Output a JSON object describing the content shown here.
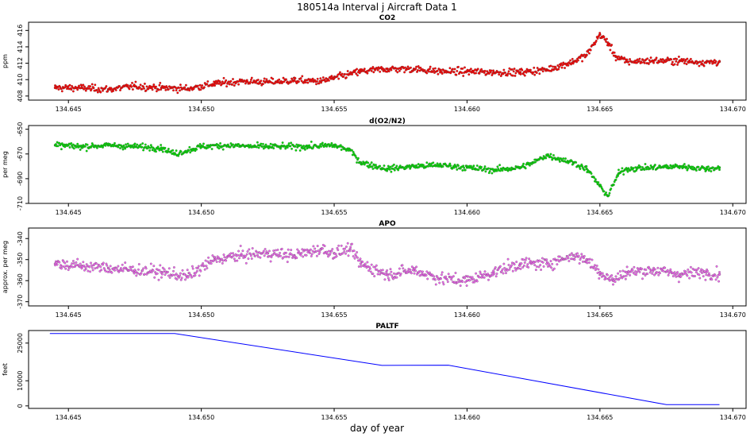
{
  "figure_title": "180514a   Interval j Aircraft Data 1",
  "xlabel": "day of year",
  "chart_data": [
    {
      "type": "scatter",
      "title": "CO2",
      "ylabel": "ppm",
      "xlim": [
        134.6435,
        134.6705
      ],
      "ylim": [
        407.5,
        417.0
      ],
      "xticks": [
        134.645,
        134.65,
        134.655,
        134.66,
        134.665,
        134.67
      ],
      "xtick_labels": [
        "134.645",
        "134.650",
        "134.655",
        "134.660",
        "134.665",
        "134.670"
      ],
      "yticks": [
        408,
        410,
        412,
        414,
        416
      ],
      "ytick_labels": [
        "408",
        "410",
        "412",
        "414",
        "416"
      ],
      "series": [
        {
          "color": "#ff0000",
          "x": [
            134.6445,
            134.6455,
            134.6465,
            134.6475,
            134.6485,
            134.6495,
            134.6505,
            134.6515,
            134.6525,
            134.6535,
            134.6545,
            134.655,
            134.656,
            134.657,
            134.658,
            134.659,
            134.66,
            134.661,
            134.662,
            134.663,
            134.664,
            134.6645,
            134.665,
            134.6653,
            134.6656,
            134.666,
            134.667,
            134.668,
            134.669,
            134.6695
          ],
          "y": [
            409.0,
            409.0,
            408.8,
            409.2,
            409.0,
            408.9,
            409.5,
            409.8,
            409.7,
            409.9,
            409.8,
            410.2,
            411.0,
            411.3,
            411.3,
            411.0,
            411.0,
            410.9,
            410.9,
            411.2,
            412.2,
            413.0,
            415.5,
            414.5,
            412.8,
            412.2,
            412.3,
            412.3,
            412.1,
            412.2
          ]
        }
      ]
    },
    {
      "type": "scatter",
      "title": "d(O2/N2)",
      "ylabel": "per meg",
      "xlim": [
        134.6435,
        134.6705
      ],
      "ylim": [
        -710,
        -647
      ],
      "xticks": [
        134.645,
        134.65,
        134.655,
        134.66,
        134.665,
        134.67
      ],
      "xtick_labels": [
        "134.645",
        "134.650",
        "134.655",
        "134.660",
        "134.665",
        "134.670"
      ],
      "yticks": [
        -650,
        -670,
        -690,
        -710
      ],
      "ytick_labels": [
        "-650",
        "-670",
        "-690",
        "-710"
      ],
      "series": [
        {
          "color": "#00dd00",
          "x": [
            134.6445,
            134.6455,
            134.6465,
            134.6475,
            134.6485,
            134.649,
            134.65,
            134.651,
            134.652,
            134.653,
            134.654,
            134.655,
            134.6556,
            134.656,
            134.657,
            134.658,
            134.659,
            134.66,
            134.661,
            134.662,
            134.6625,
            134.663,
            134.664,
            134.6645,
            134.665,
            134.6653,
            134.6657,
            134.666,
            134.667,
            134.668,
            134.669,
            134.6695
          ],
          "y": [
            -663,
            -664,
            -663,
            -664,
            -665,
            -670,
            -664,
            -663,
            -664,
            -664,
            -664,
            -663,
            -667,
            -677,
            -682,
            -680,
            -679,
            -681,
            -683,
            -681,
            -677,
            -671,
            -677,
            -682,
            -696,
            -704,
            -686,
            -682,
            -681,
            -680,
            -682,
            -681
          ]
        }
      ]
    },
    {
      "type": "scatter",
      "title": "APO",
      "ylabel": "approx. per meg",
      "xlim": [
        134.6435,
        134.6705
      ],
      "ylim": [
        -372,
        -335
      ],
      "xticks": [
        134.645,
        134.65,
        134.655,
        134.66,
        134.665,
        134.67
      ],
      "xtick_labels": [
        "134.645",
        "134.650",
        "134.655",
        "134.660",
        "134.665",
        "134.670"
      ],
      "yticks": [
        -340,
        -350,
        -360,
        -370
      ],
      "ytick_labels": [
        "-340",
        "-350",
        "-360",
        "-370"
      ],
      "series": [
        {
          "color": "#ee66ee",
          "x": [
            134.6445,
            134.6455,
            134.6465,
            134.6475,
            134.6485,
            134.6495,
            134.6505,
            134.6515,
            134.6525,
            134.6535,
            134.6545,
            134.655,
            134.6556,
            134.656,
            134.657,
            134.658,
            134.659,
            134.66,
            134.661,
            134.662,
            134.663,
            134.664,
            134.6645,
            134.665,
            134.6655,
            134.666,
            134.667,
            134.668,
            134.669,
            134.6695
          ],
          "y": [
            -352,
            -353,
            -354,
            -355,
            -356,
            -358,
            -350,
            -348,
            -347,
            -348,
            -345,
            -347,
            -345,
            -352,
            -357,
            -355,
            -359,
            -360,
            -356,
            -352,
            -352,
            -348,
            -350,
            -356,
            -360,
            -356,
            -355,
            -357,
            -356,
            -357
          ]
        }
      ]
    },
    {
      "type": "line",
      "title": "PALTF",
      "ylabel": "feet",
      "xlim": [
        134.6435,
        134.6705
      ],
      "ylim": [
        -1000,
        30000
      ],
      "xticks": [
        134.645,
        134.65,
        134.655,
        134.66,
        134.665,
        134.67
      ],
      "xtick_labels": [
        "134.645",
        "134.650",
        "134.655",
        "134.660",
        "134.665",
        "134.670"
      ],
      "yticks": [
        0,
        10000,
        25000
      ],
      "ytick_labels": [
        "0",
        "10000",
        "25000"
      ],
      "series": [
        {
          "color": "#0000ff",
          "x": [
            134.6443,
            134.649,
            134.6568,
            134.6593,
            134.6675,
            134.6695
          ],
          "y": [
            28800,
            28800,
            16100,
            16200,
            500,
            500
          ]
        }
      ]
    }
  ]
}
